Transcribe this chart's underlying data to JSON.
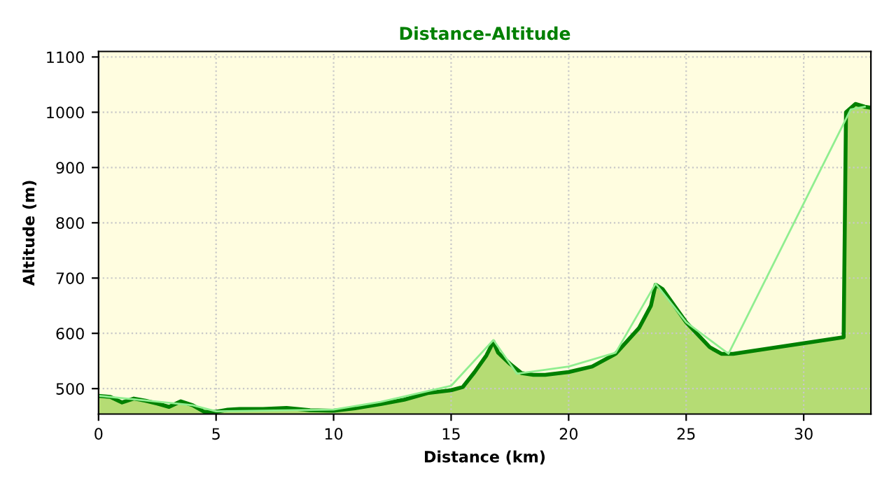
{
  "chart_data": {
    "type": "area",
    "title": "Distance-Altitude",
    "xlabel": "Distance (km)",
    "ylabel": "Altitude (m)",
    "xlim": [
      0,
      32.86
    ],
    "ylim": [
      454,
      1110
    ],
    "xticks": [
      0,
      5,
      10,
      15,
      20,
      25,
      30
    ],
    "yticks": [
      500,
      600,
      700,
      800,
      900,
      1000,
      1100
    ],
    "grid": true,
    "line_style": "solid",
    "series": [
      {
        "color": "#008000",
        "x": [
          0,
          0.5,
          1,
          1.5,
          2,
          2.5,
          3,
          3.5,
          4,
          4.5,
          5,
          5.5,
          6,
          7,
          8,
          9,
          10,
          11,
          12,
          13,
          14,
          15,
          15.5,
          16,
          16.5,
          16.8,
          17,
          17.5,
          18,
          18.5,
          19,
          20,
          21,
          22,
          23,
          23.5,
          23.7,
          24,
          24.5,
          25,
          26,
          26.5,
          27,
          31.7,
          31.8,
          32.2,
          32.6,
          32.86
        ],
        "values": [
          487,
          485,
          475,
          482,
          478,
          473,
          467,
          477,
          470,
          458,
          458,
          462,
          463,
          463,
          465,
          461,
          460,
          465,
          472,
          480,
          492,
          497,
          503,
          530,
          560,
          585,
          565,
          545,
          528,
          525,
          525,
          530,
          540,
          563,
          610,
          650,
          688,
          680,
          650,
          620,
          575,
          563,
          563,
          593,
          1000,
          1015,
          1010,
          1008
        ]
      },
      {
        "type": "line",
        "color": "#90ee90",
        "x": [
          0,
          4,
          5,
          10,
          12,
          15,
          16.8,
          17.8,
          20,
          22,
          23.7,
          25,
          26.8,
          32.0,
          32.6
        ],
        "values": [
          487,
          470,
          459,
          462,
          476,
          505,
          588,
          527,
          540,
          565,
          690,
          620,
          563,
          1005,
          1010
        ]
      }
    ]
  }
}
